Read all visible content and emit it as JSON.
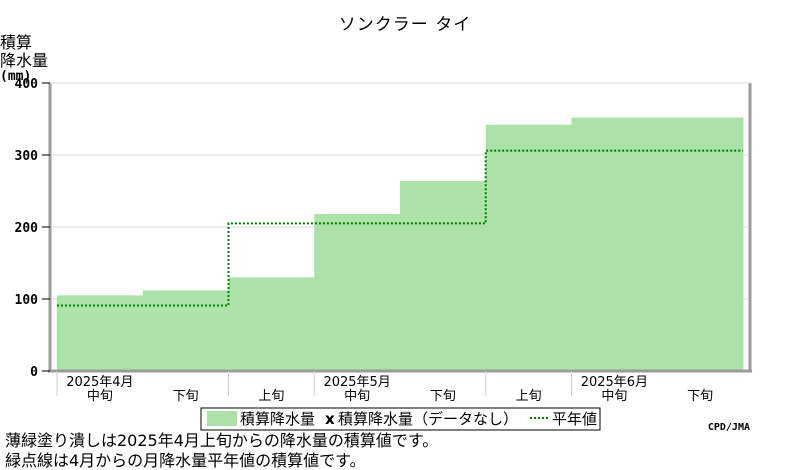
{
  "chart_data": {
    "type": "area",
    "title": "ソンクラー タイ",
    "ylabel_lines": [
      "積算",
      "降水量",
      "(mm)"
    ],
    "yticks": [
      "0",
      "100",
      "200",
      "300",
      "400"
    ],
    "ylim": [
      0,
      400
    ],
    "grid": true,
    "periods": [
      "2025年4月中旬",
      "2025年4月下旬",
      "2025年5月上旬",
      "2025年5月中旬",
      "2025年5月下旬",
      "2025年6月上旬",
      "2025年6月中旬",
      "2025年6月下旬"
    ],
    "x_ticks": [
      {
        "top": "2025年4月",
        "bottom": "中旬"
      },
      {
        "top": "",
        "bottom": "下旬"
      },
      {
        "top": "",
        "bottom": "上旬"
      },
      {
        "top": "2025年5月",
        "bottom": "中旬"
      },
      {
        "top": "",
        "bottom": "下旬"
      },
      {
        "top": "",
        "bottom": "上旬"
      },
      {
        "top": "2025年6月",
        "bottom": "中旬"
      },
      {
        "top": "",
        "bottom": "下旬"
      }
    ],
    "series": [
      {
        "name": "積算降水量",
        "values": [
          105,
          112,
          130,
          218,
          264,
          342,
          352,
          352
        ],
        "color": "#abe2a8"
      },
      {
        "name": "平年値",
        "values": [
          91,
          91,
          205,
          205,
          205,
          306,
          306,
          306
        ],
        "color": "#007a00"
      }
    ]
  },
  "legend": {
    "area_label": "積算降水量",
    "nodata_mark": "x",
    "nodata_label": "積算降水量（データなし）",
    "normal_label": "平年値"
  },
  "source": "CPD/JMA",
  "notes": [
    "薄緑塗り潰しは2025年4月上旬からの降水量の積算値です。",
    "緑点線は4月からの月降水量平年値の積算値です。"
  ]
}
